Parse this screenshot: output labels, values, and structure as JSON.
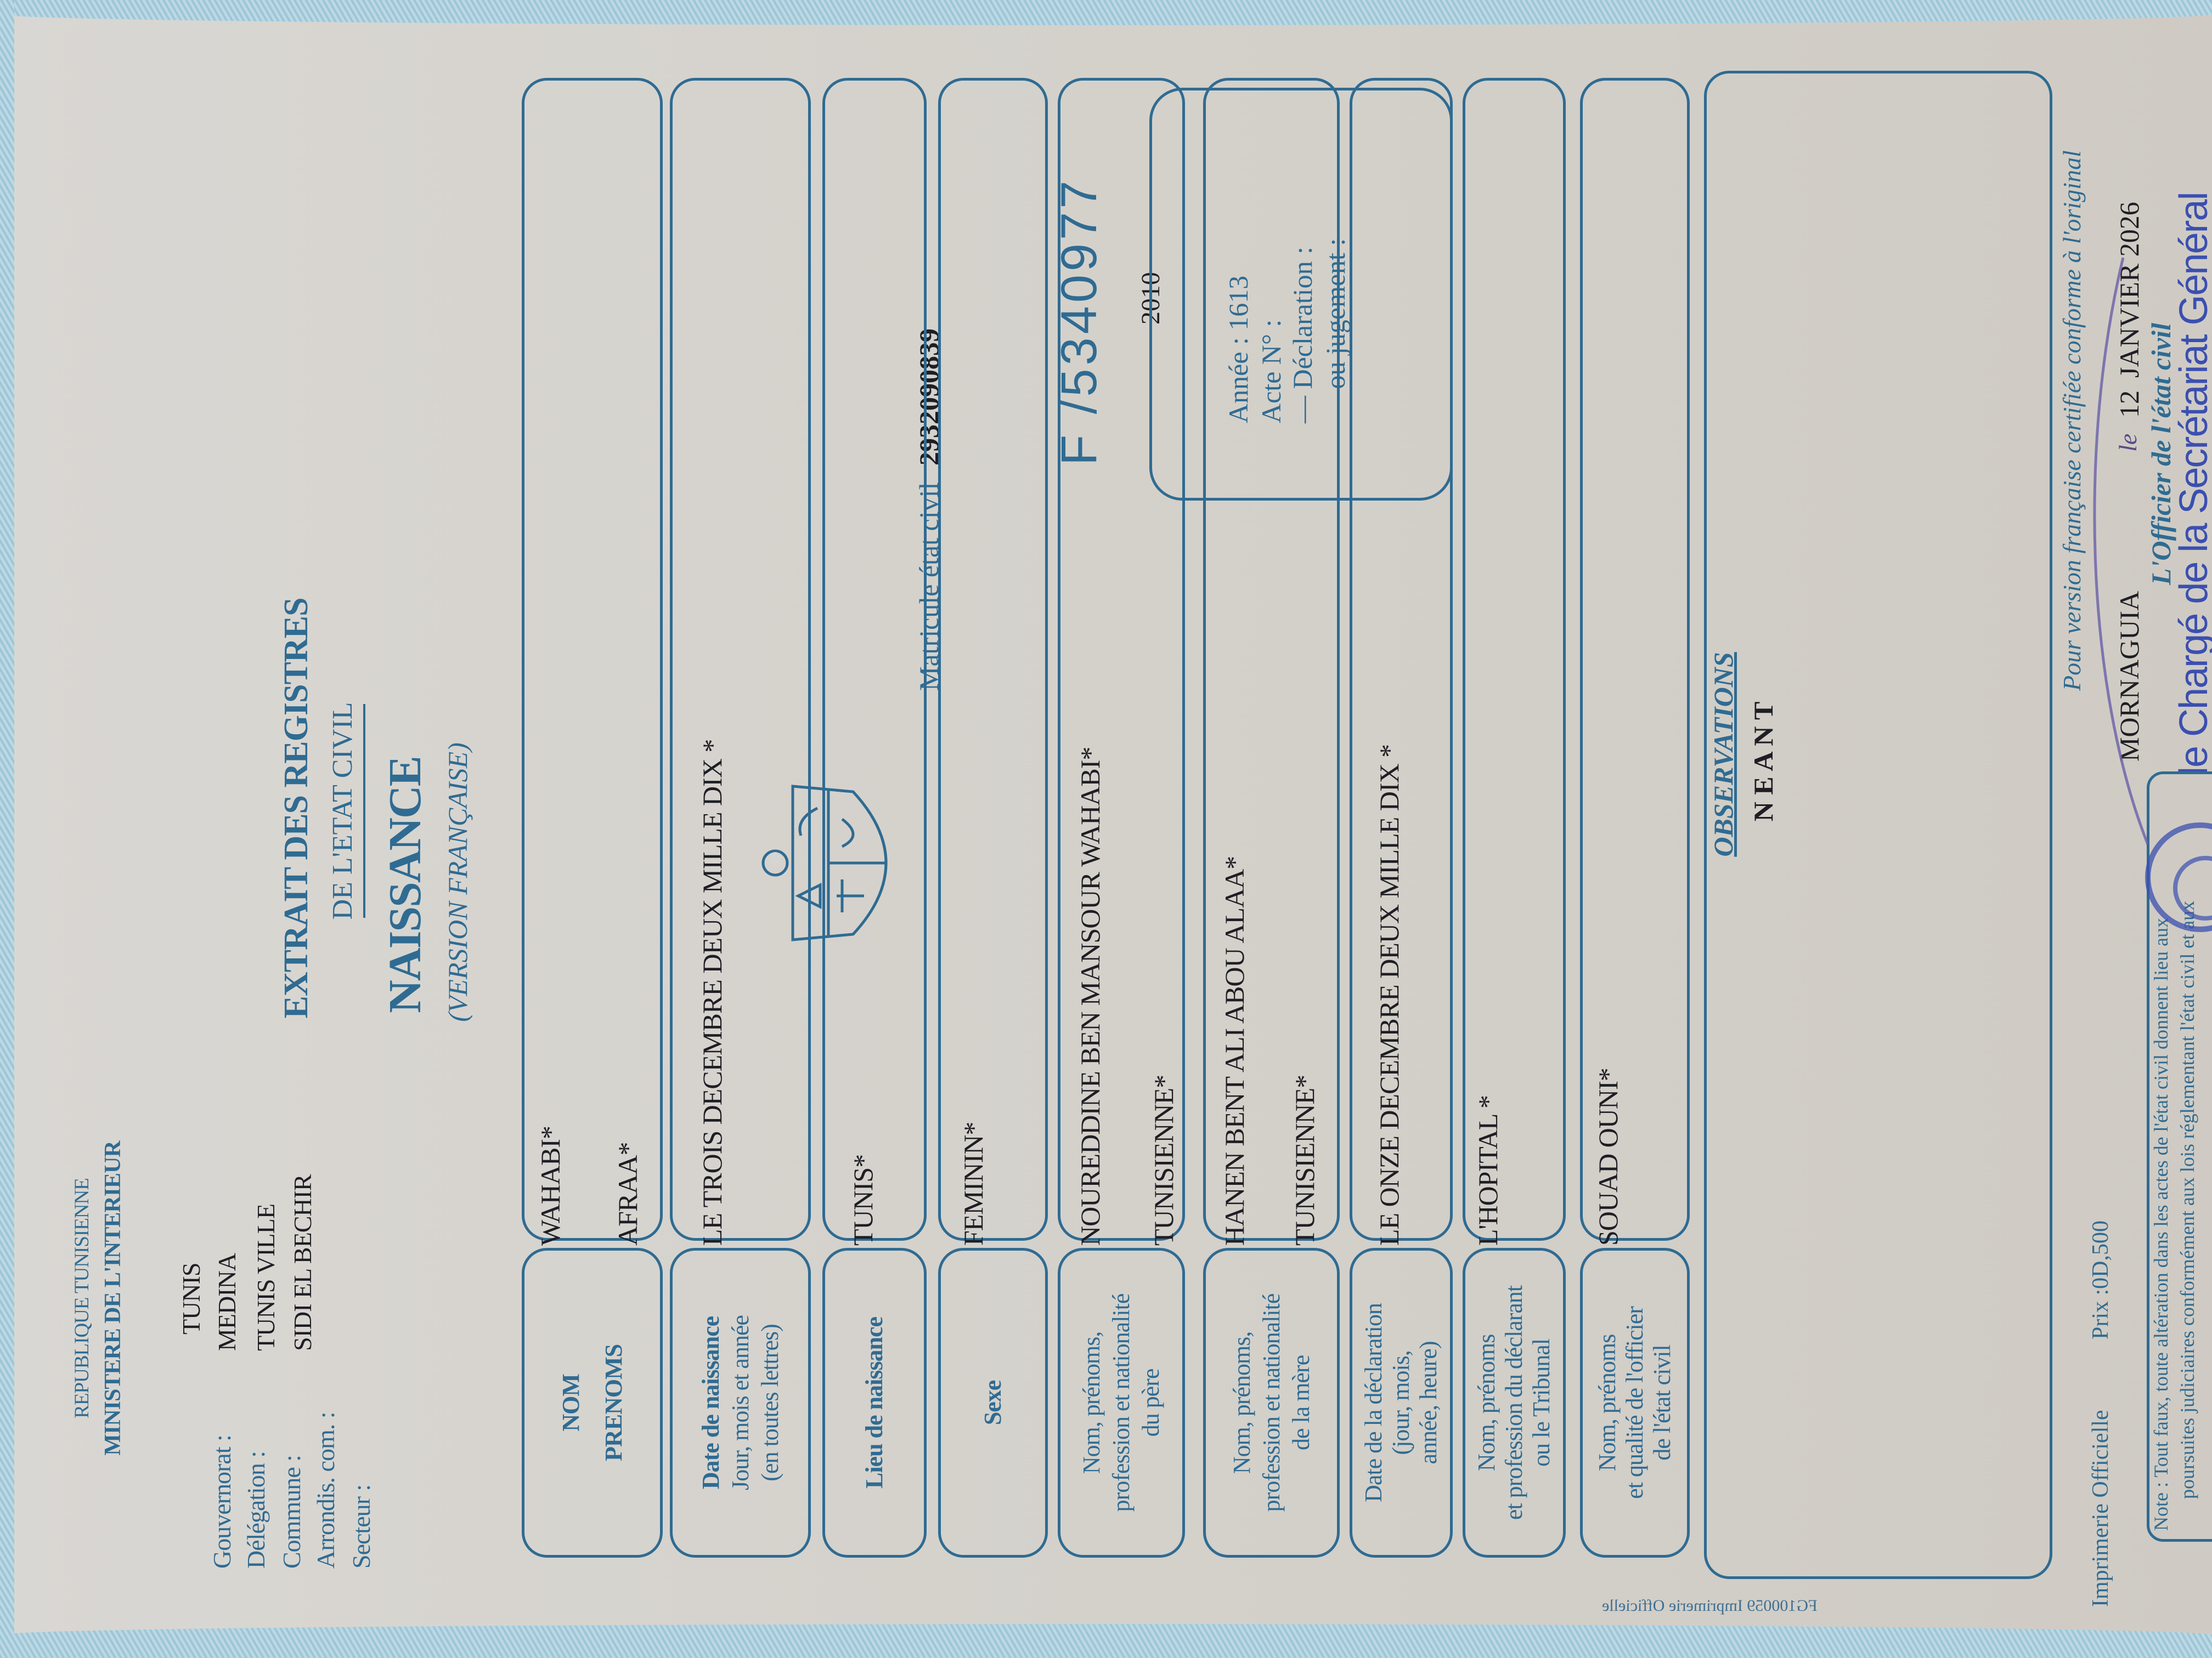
{
  "header": {
    "republic": "REPUBLIQUE TUNISIENNE",
    "ministry": "MINISTERE DE L'INTERIEUR"
  },
  "location": {
    "labels": [
      "Gouvernorat :",
      "Délégation :",
      "Commune :",
      "Arrondis. com. :",
      "Secteur :"
    ],
    "values": [
      "TUNIS",
      "MEDINA",
      "TUNIS VILLE",
      "SIDI EL BECHIR"
    ]
  },
  "title": {
    "line1": "EXTRAIT DES REGISTRES",
    "line2": "DE L'ETAT CIVIL",
    "line3": "NAISSANCE",
    "line4": "(VERSION FRANÇAISE)"
  },
  "emblem": "tunisia-coat-of-arms",
  "matricule": {
    "label": "Matricule état civil",
    "value": "2932090839"
  },
  "serial": "F /5340977",
  "year": "2010",
  "acte_box": {
    "annee": "Année : 1613",
    "acte": "Acte N° :",
    "declaration": "— Déclaration :",
    "jugement": "— ou jugement :"
  },
  "rows": [
    {
      "label": [
        "NOM",
        "PRENOMS"
      ],
      "values": [
        "WAHABI*",
        "AFRAA*"
      ]
    },
    {
      "label": [
        "Date de naissance",
        "Jour, mois et année",
        "(en toutes lettres)"
      ],
      "values": [
        "LE TROIS DECEMBRE  DEUX MILLE DIX *"
      ]
    },
    {
      "label": [
        "Lieu de naissance"
      ],
      "values": [
        "TUNIS*"
      ]
    },
    {
      "label": [
        "Sexe"
      ],
      "values": [
        "FEMININ*"
      ]
    },
    {
      "label": [
        "Nom, prénoms,",
        "profession et nationalité",
        "du père"
      ],
      "values": [
        "NOUREDDINE BEN MANSOUR WAHABI*",
        "TUNISIENNE*"
      ]
    },
    {
      "label": [
        "Nom, prénoms,",
        "profession et nationalité",
        "de la mère"
      ],
      "values": [
        "HANEN BENT ALI ABOU ALAA*",
        "TUNISIENNE*"
      ]
    },
    {
      "label": [
        "Date de la déclaration",
        "(jour, mois,",
        "année, heure)"
      ],
      "values": [
        "LE ONZE DECEMBRE  DEUX MILLE DIX *"
      ]
    },
    {
      "label": [
        "Nom, prénoms",
        "et profession du déclarant",
        "ou le Tribunal"
      ],
      "values": [
        "L'HOPITAL *"
      ]
    },
    {
      "label": [
        "Nom, prénoms",
        "et qualité de l'officier",
        "de l'état civil"
      ],
      "values": [
        "SOUAD OUNI*"
      ]
    }
  ],
  "observations": {
    "title": "OBSERVATIONS",
    "value": "N E A N T"
  },
  "footer": {
    "certified": "Pour version française certifiée conforme à l'original",
    "place": "MORNAGUIA",
    "handwritten_le": "le",
    "day": "12",
    "month_year": "JANVIER 2026",
    "officer": "L'Officier de l'état civil",
    "stamp": "le Chargé de la Secrétariat Général",
    "printer": "Imprimerie Officielle",
    "price": "Prix :0D,500",
    "note_line1": "Note : Tout faux, toute altération dans les actes de l'état civil donnent lieu aux",
    "note_line2": "poursuites judiciaires conformément aux lois réglementant l'état civil et aux",
    "form_code": "FG100059 Imprimerie Officielle"
  },
  "colors": {
    "print_blue": "#2f6b92",
    "typed_ink": "#1e1e24",
    "stamp_ink": "#3b4fb0",
    "paper": "#d6d3ce"
  }
}
